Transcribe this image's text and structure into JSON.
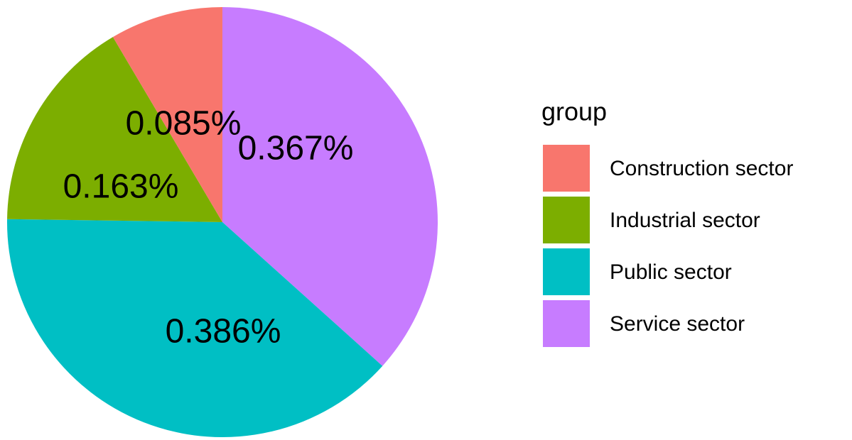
{
  "chart_data": {
    "type": "pie",
    "legend_title": "group",
    "categories": [
      "Construction sector",
      "Industrial sector",
      "Public sector",
      "Service sector"
    ],
    "values": [
      0.085,
      0.163,
      0.386,
      0.367
    ],
    "value_labels": [
      "0.085%",
      "0.163%",
      "0.386%",
      "0.367%"
    ],
    "colors": [
      "#F8766D",
      "#7CAE00",
      "#00BFC4",
      "#C77CFF"
    ],
    "legend": "right"
  }
}
